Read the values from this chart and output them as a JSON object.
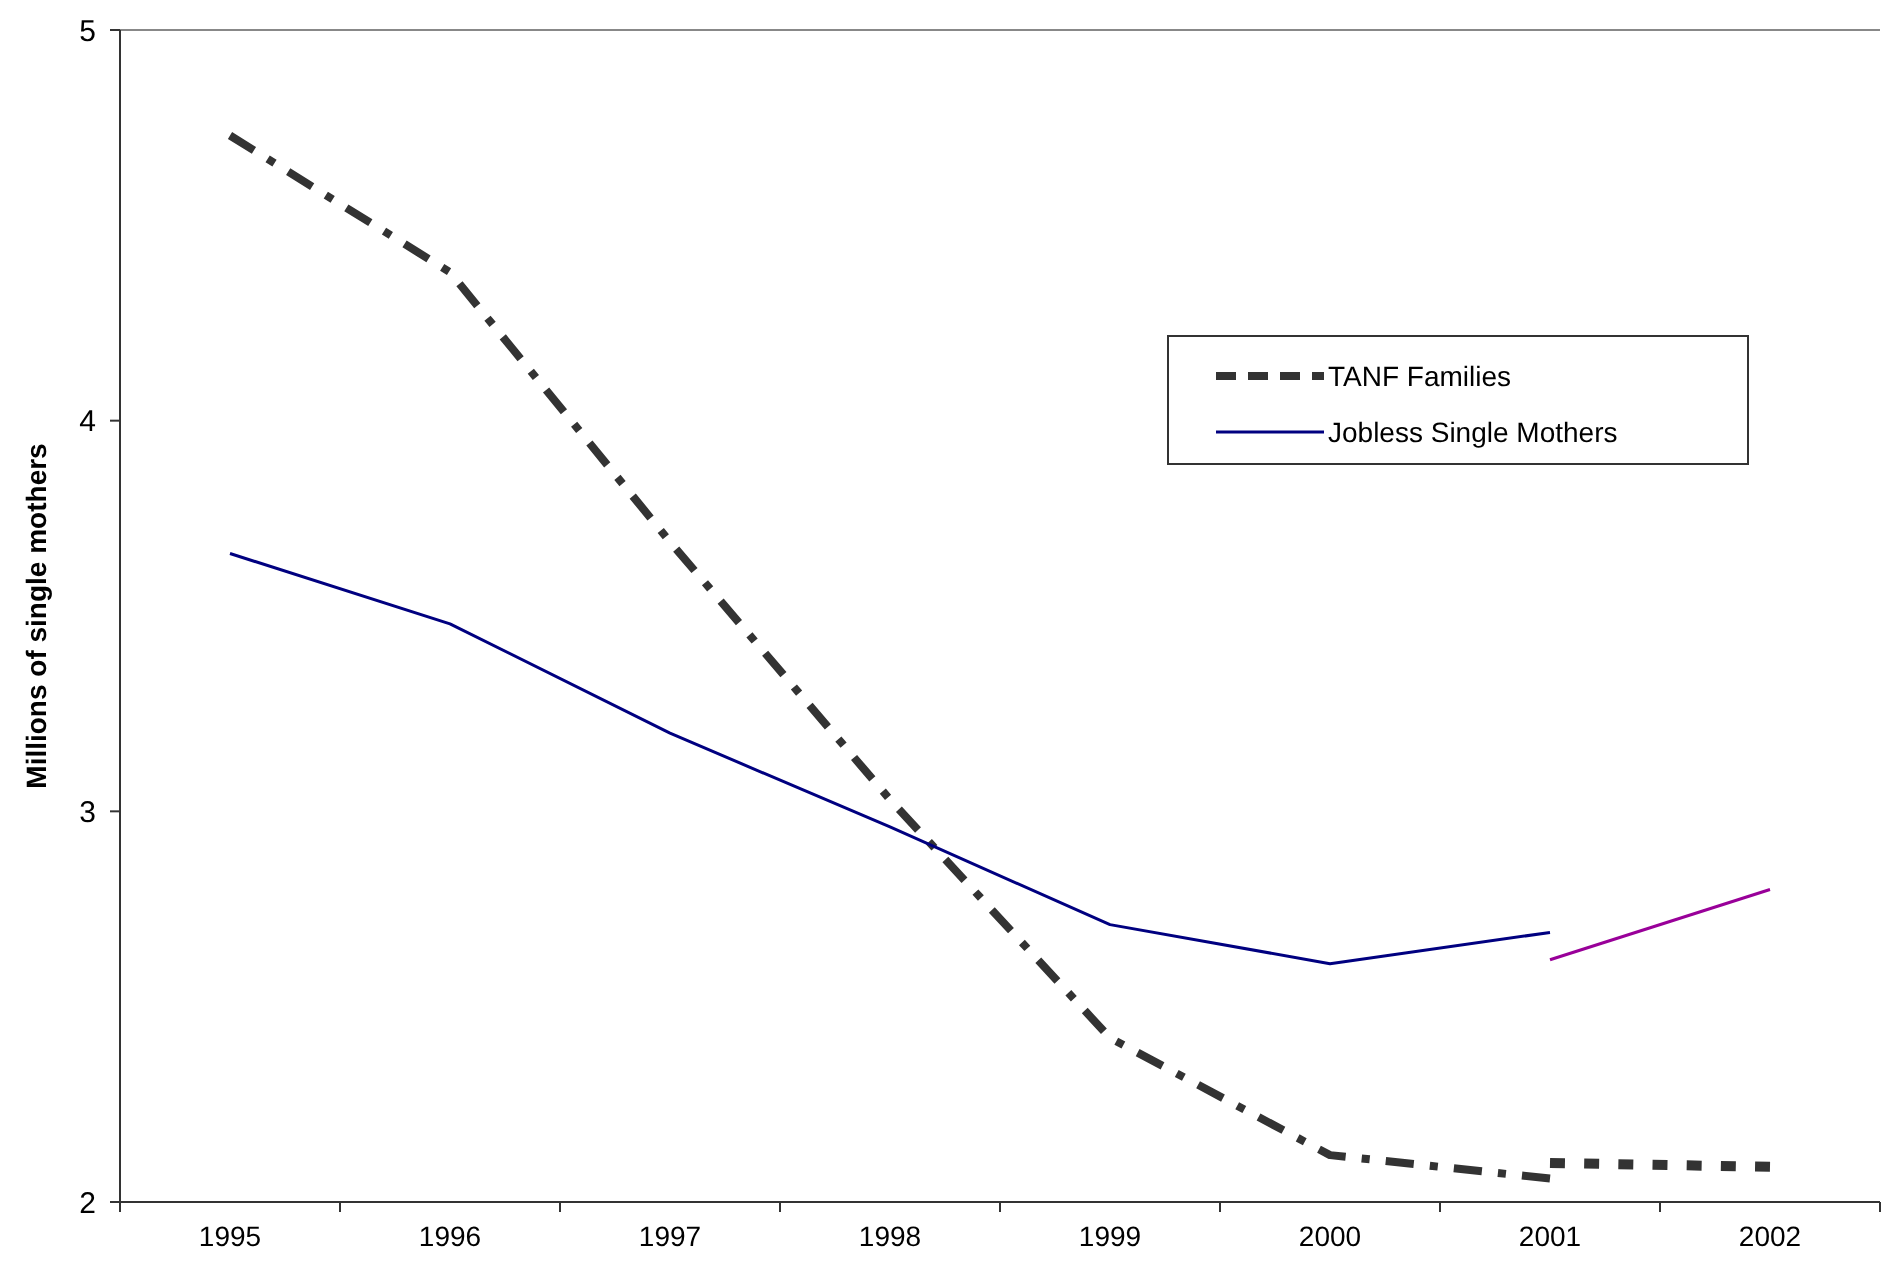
{
  "chart_data": {
    "type": "line",
    "ylabel": "Millions of single mothers",
    "categories": [
      "1995",
      "1996",
      "1997",
      "1998",
      "1999",
      "2000",
      "2001",
      "2002"
    ],
    "ylim": [
      2,
      5
    ],
    "yticks": [
      2,
      3,
      4,
      5
    ],
    "grid": false,
    "legend": "top right",
    "series": [
      {
        "name": "TANF Families",
        "color": "#333333",
        "line_style": "dashed",
        "values": [
          4.73,
          4.38,
          3.69,
          3.03,
          2.42,
          2.12,
          2.06,
          null
        ]
      },
      {
        "name": "Jobless Single Mothers",
        "color": "#000080",
        "line_style": "solid",
        "values": [
          3.66,
          3.48,
          3.2,
          2.96,
          2.71,
          2.61,
          2.69,
          null
        ]
      },
      {
        "color": "#333333",
        "line_style": "dotted",
        "values": [
          null,
          null,
          null,
          null,
          null,
          null,
          2.1,
          2.09
        ]
      },
      {
        "color": "#990099",
        "line_style": "solid",
        "values": [
          null,
          null,
          null,
          null,
          null,
          null,
          2.62,
          2.8
        ]
      }
    ]
  }
}
